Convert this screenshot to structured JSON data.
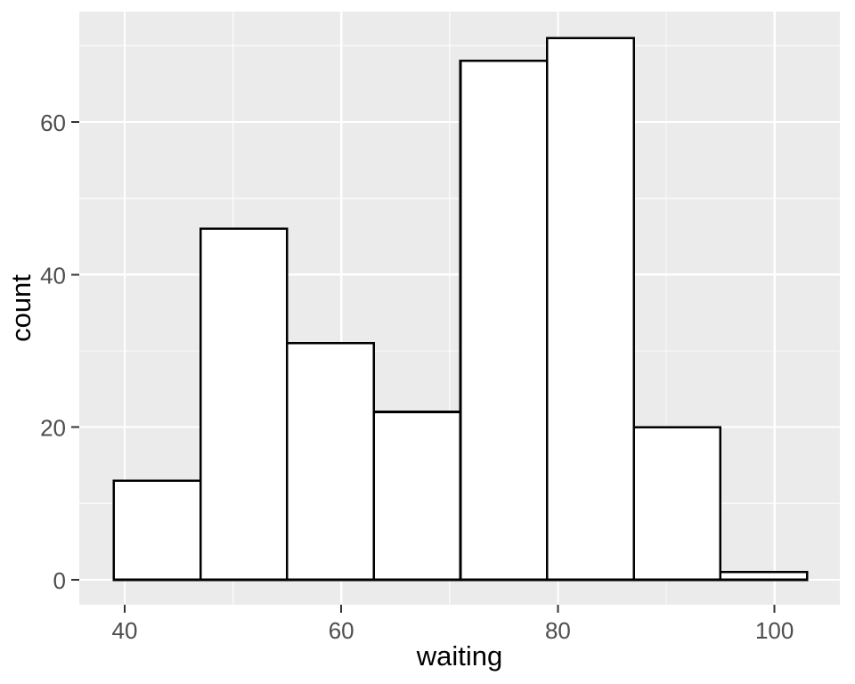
{
  "figure": {
    "background": "#FFFFFF",
    "panel_background": "#EBEBEB",
    "grid_major_color": "#FFFFFF",
    "grid_minor_color": "#FFFFFF",
    "bar_fill": "#FFFFFF",
    "bar_stroke": "#000000",
    "axis_text_color": "#4D4D4D",
    "axis_title_color": "#000000",
    "tick_color": "#333333"
  },
  "chart_data": {
    "type": "bar",
    "subtype": "histogram",
    "title": "",
    "xlabel": "waiting",
    "ylabel": "count",
    "bin_edges": [
      39,
      47,
      55,
      63,
      71,
      79,
      87,
      95,
      103
    ],
    "values": [
      13,
      46,
      31,
      22,
      68,
      71,
      20,
      1
    ],
    "x_ticks": [
      40,
      60,
      80,
      100
    ],
    "x_tick_labels": [
      "40",
      "60",
      "80",
      "100"
    ],
    "y_ticks": [
      0,
      20,
      40,
      60
    ],
    "y_tick_labels": [
      "0",
      "20",
      "40",
      "60"
    ],
    "x_minor_gridlines": [
      50,
      70,
      90
    ],
    "y_minor_gridlines": [
      10,
      30,
      50,
      70
    ],
    "xlim": [
      35.81,
      106.03
    ],
    "ylim": [
      -3.27,
      74.47
    ],
    "grid": "on",
    "legend": "none"
  }
}
